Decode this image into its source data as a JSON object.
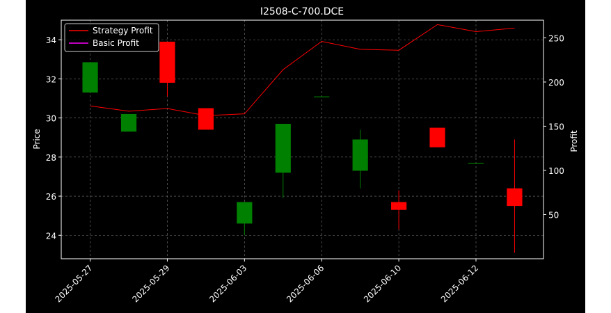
{
  "chart_data": {
    "type": "candlestick",
    "title": "I2508-C-700.DCE",
    "ylabel_left": "Price",
    "ylabel_right": "Profit",
    "xlabel": "",
    "grid": true,
    "legend_position": "top-left",
    "ylim_left": [
      22.8,
      35.0
    ],
    "ylim_right": [
      0,
      270
    ],
    "y_ticks_left": [
      24,
      26,
      28,
      30,
      32,
      34
    ],
    "y_ticks_right": [
      50,
      100,
      150,
      200,
      250
    ],
    "x_tick_labels": [
      "2025-05-27",
      "2025-05-29",
      "2025-06-03",
      "2025-06-06",
      "2025-06-10",
      "2025-06-12"
    ],
    "x_tick_positions": [
      0,
      2,
      4,
      6,
      8,
      10
    ],
    "x_range": [
      -0.75,
      11.75
    ],
    "up_color": "#008000",
    "down_color": "#ff0000",
    "candles": [
      {
        "i": 0,
        "open": 31.3,
        "close": 32.85,
        "high": 32.85,
        "low": 31.3
      },
      {
        "i": 1,
        "open": 29.3,
        "close": 30.2,
        "high": 30.2,
        "low": 29.3
      },
      {
        "i": 2,
        "open": 33.9,
        "close": 31.8,
        "high": 33.9,
        "low": 31.1
      },
      {
        "i": 3,
        "open": 30.5,
        "close": 29.4,
        "high": 30.5,
        "low": 29.4
      },
      {
        "i": 4,
        "open": 24.6,
        "close": 25.7,
        "high": 25.7,
        "low": 24.0
      },
      {
        "i": 5,
        "open": 27.2,
        "close": 29.7,
        "high": 29.7,
        "low": 25.9
      },
      {
        "i": 6,
        "open": 31.1,
        "close": 31.1,
        "high": 31.1,
        "low": 31.1
      },
      {
        "i": 7,
        "open": 27.3,
        "close": 28.9,
        "high": 29.4,
        "low": 26.4
      },
      {
        "i": 8,
        "open": 25.7,
        "close": 25.3,
        "high": 26.3,
        "low": 24.3
      },
      {
        "i": 9,
        "open": 29.5,
        "close": 28.5,
        "high": 29.5,
        "low": 28.5
      },
      {
        "i": 10,
        "open": 27.7,
        "close": 27.7,
        "high": 27.7,
        "low": 27.7
      },
      {
        "i": 11,
        "open": 26.4,
        "close": 25.5,
        "high": 28.9,
        "low": 23.1
      }
    ],
    "series": [
      {
        "name": "Strategy Profit",
        "color": "#ff0000",
        "axis": "right",
        "x": [
          0,
          1,
          2,
          3,
          4,
          5,
          6,
          7,
          8,
          9,
          10,
          11
        ],
        "values": [
          173,
          167,
          170,
          162,
          164,
          214,
          246,
          237,
          236,
          265,
          257,
          261
        ]
      },
      {
        "name": "Basic Profit",
        "color": "#ff00ff",
        "axis": "right",
        "x": [],
        "values": []
      }
    ]
  }
}
